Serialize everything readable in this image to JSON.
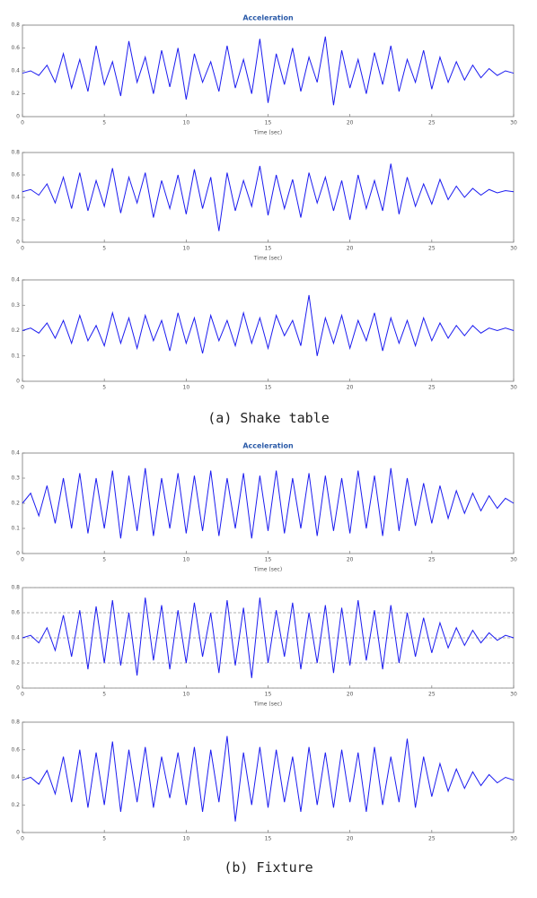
{
  "chart_data": [
    {
      "type": "line",
      "title": "Acceleration",
      "x_label": "Time (sec)",
      "x": [
        0,
        0.5,
        1,
        1.5,
        2,
        2.5,
        3,
        3.5,
        4,
        4.5,
        5,
        5.5,
        6,
        6.5,
        7,
        7.5,
        8,
        8.5,
        9,
        9.5,
        10,
        10.5,
        11,
        11.5,
        12,
        12.5,
        13,
        13.5,
        14,
        14.5,
        15,
        15.5,
        16,
        16.5,
        17,
        17.5,
        18,
        18.5,
        19,
        19.5,
        20,
        20.5,
        21,
        21.5,
        22,
        22.5,
        23,
        23.5,
        24,
        24.5,
        25,
        25.5,
        26,
        26.5,
        27,
        27.5,
        28,
        28.5,
        29,
        29.5,
        30
      ],
      "values": [
        0.38,
        0.4,
        0.36,
        0.45,
        0.3,
        0.55,
        0.25,
        0.5,
        0.22,
        0.62,
        0.28,
        0.48,
        0.18,
        0.66,
        0.3,
        0.52,
        0.2,
        0.58,
        0.26,
        0.6,
        0.15,
        0.55,
        0.3,
        0.48,
        0.22,
        0.62,
        0.25,
        0.5,
        0.2,
        0.68,
        0.12,
        0.55,
        0.28,
        0.6,
        0.22,
        0.52,
        0.3,
        0.7,
        0.1,
        0.58,
        0.25,
        0.5,
        0.2,
        0.56,
        0.28,
        0.62,
        0.22,
        0.5,
        0.3,
        0.58,
        0.24,
        0.52,
        0.3,
        0.48,
        0.32,
        0.45,
        0.34,
        0.42,
        0.36,
        0.4,
        0.38
      ],
      "color": "#1c1cf0",
      "xlim": [
        0,
        30
      ],
      "xticks": [
        0,
        5,
        10,
        15,
        20,
        25,
        30
      ],
      "ylim": [
        0,
        0.8
      ],
      "yticks": [
        0,
        0.2,
        0.4,
        0.6,
        0.8
      ],
      "grid": false
    },
    {
      "type": "line",
      "x_label": "Time (sec)",
      "x": [
        0,
        0.5,
        1,
        1.5,
        2,
        2.5,
        3,
        3.5,
        4,
        4.5,
        5,
        5.5,
        6,
        6.5,
        7,
        7.5,
        8,
        8.5,
        9,
        9.5,
        10,
        10.5,
        11,
        11.5,
        12,
        12.5,
        13,
        13.5,
        14,
        14.5,
        15,
        15.5,
        16,
        16.5,
        17,
        17.5,
        18,
        18.5,
        19,
        19.5,
        20,
        20.5,
        21,
        21.5,
        22,
        22.5,
        23,
        23.5,
        24,
        24.5,
        25,
        25.5,
        26,
        26.5,
        27,
        27.5,
        28,
        28.5,
        29,
        29.5,
        30
      ],
      "values": [
        0.45,
        0.47,
        0.42,
        0.52,
        0.35,
        0.58,
        0.3,
        0.62,
        0.28,
        0.55,
        0.32,
        0.66,
        0.26,
        0.58,
        0.35,
        0.62,
        0.22,
        0.55,
        0.3,
        0.6,
        0.25,
        0.65,
        0.3,
        0.58,
        0.1,
        0.62,
        0.28,
        0.55,
        0.32,
        0.68,
        0.24,
        0.6,
        0.3,
        0.56,
        0.22,
        0.62,
        0.35,
        0.58,
        0.28,
        0.55,
        0.2,
        0.6,
        0.3,
        0.55,
        0.28,
        0.7,
        0.25,
        0.58,
        0.32,
        0.52,
        0.34,
        0.56,
        0.38,
        0.5,
        0.4,
        0.48,
        0.42,
        0.47,
        0.44,
        0.46,
        0.45
      ],
      "color": "#1c1cf0",
      "xlim": [
        0,
        30
      ],
      "xticks": [
        0,
        5,
        10,
        15,
        20,
        25,
        30
      ],
      "ylim": [
        0,
        0.8
      ],
      "yticks": [
        0,
        0.2,
        0.4,
        0.6,
        0.8
      ],
      "grid": false
    },
    {
      "type": "line",
      "x": [
        0,
        0.5,
        1,
        1.5,
        2,
        2.5,
        3,
        3.5,
        4,
        4.5,
        5,
        5.5,
        6,
        6.5,
        7,
        7.5,
        8,
        8.5,
        9,
        9.5,
        10,
        10.5,
        11,
        11.5,
        12,
        12.5,
        13,
        13.5,
        14,
        14.5,
        15,
        15.5,
        16,
        16.5,
        17,
        17.5,
        18,
        18.5,
        19,
        19.5,
        20,
        20.5,
        21,
        21.5,
        22,
        22.5,
        23,
        23.5,
        24,
        24.5,
        25,
        25.5,
        26,
        26.5,
        27,
        27.5,
        28,
        28.5,
        29,
        29.5,
        30
      ],
      "values": [
        0.2,
        0.21,
        0.19,
        0.23,
        0.17,
        0.24,
        0.15,
        0.26,
        0.16,
        0.22,
        0.14,
        0.27,
        0.15,
        0.25,
        0.13,
        0.26,
        0.16,
        0.24,
        0.12,
        0.27,
        0.15,
        0.25,
        0.11,
        0.26,
        0.16,
        0.24,
        0.14,
        0.27,
        0.15,
        0.25,
        0.13,
        0.26,
        0.18,
        0.24,
        0.14,
        0.34,
        0.1,
        0.25,
        0.15,
        0.26,
        0.13,
        0.24,
        0.16,
        0.27,
        0.12,
        0.25,
        0.15,
        0.24,
        0.14,
        0.25,
        0.16,
        0.23,
        0.17,
        0.22,
        0.18,
        0.22,
        0.19,
        0.21,
        0.2,
        0.21,
        0.2
      ],
      "color": "#1c1cf0",
      "xlim": [
        0,
        30
      ],
      "xticks": [
        0,
        5,
        10,
        15,
        20,
        25,
        30
      ],
      "ylim": [
        0,
        0.4
      ],
      "yticks": [
        0,
        0.1,
        0.2,
        0.3,
        0.4
      ],
      "grid": false
    },
    {
      "type": "line",
      "title": "Acceleration",
      "x_label": "Time (sec)",
      "x": [
        0,
        0.5,
        1,
        1.5,
        2,
        2.5,
        3,
        3.5,
        4,
        4.5,
        5,
        5.5,
        6,
        6.5,
        7,
        7.5,
        8,
        8.5,
        9,
        9.5,
        10,
        10.5,
        11,
        11.5,
        12,
        12.5,
        13,
        13.5,
        14,
        14.5,
        15,
        15.5,
        16,
        16.5,
        17,
        17.5,
        18,
        18.5,
        19,
        19.5,
        20,
        20.5,
        21,
        21.5,
        22,
        22.5,
        23,
        23.5,
        24,
        24.5,
        25,
        25.5,
        26,
        26.5,
        27,
        27.5,
        28,
        28.5,
        29,
        29.5,
        30
      ],
      "values": [
        0.2,
        0.24,
        0.15,
        0.27,
        0.12,
        0.3,
        0.1,
        0.32,
        0.08,
        0.3,
        0.1,
        0.33,
        0.06,
        0.31,
        0.09,
        0.34,
        0.07,
        0.3,
        0.1,
        0.32,
        0.08,
        0.31,
        0.09,
        0.33,
        0.07,
        0.3,
        0.1,
        0.32,
        0.06,
        0.31,
        0.09,
        0.33,
        0.08,
        0.3,
        0.1,
        0.32,
        0.07,
        0.31,
        0.09,
        0.3,
        0.08,
        0.33,
        0.1,
        0.31,
        0.07,
        0.34,
        0.09,
        0.3,
        0.11,
        0.28,
        0.12,
        0.27,
        0.14,
        0.25,
        0.16,
        0.24,
        0.17,
        0.23,
        0.18,
        0.22,
        0.2
      ],
      "color": "#1c1cf0",
      "xlim": [
        0,
        30
      ],
      "xticks": [
        0,
        5,
        10,
        15,
        20,
        25,
        30
      ],
      "ylim": [
        0,
        0.4
      ],
      "yticks": [
        0,
        0.1,
        0.2,
        0.3,
        0.4
      ],
      "grid": false
    },
    {
      "type": "line",
      "x_label": "Time (sec)",
      "x": [
        0,
        0.5,
        1,
        1.5,
        2,
        2.5,
        3,
        3.5,
        4,
        4.5,
        5,
        5.5,
        6,
        6.5,
        7,
        7.5,
        8,
        8.5,
        9,
        9.5,
        10,
        10.5,
        11,
        11.5,
        12,
        12.5,
        13,
        13.5,
        14,
        14.5,
        15,
        15.5,
        16,
        16.5,
        17,
        17.5,
        18,
        18.5,
        19,
        19.5,
        20,
        20.5,
        21,
        21.5,
        22,
        22.5,
        23,
        23.5,
        24,
        24.5,
        25,
        25.5,
        26,
        26.5,
        27,
        27.5,
        28,
        28.5,
        29,
        29.5,
        30
      ],
      "values": [
        0.4,
        0.42,
        0.36,
        0.48,
        0.3,
        0.58,
        0.25,
        0.62,
        0.15,
        0.65,
        0.2,
        0.7,
        0.18,
        0.6,
        0.1,
        0.72,
        0.22,
        0.66,
        0.15,
        0.62,
        0.2,
        0.68,
        0.25,
        0.6,
        0.12,
        0.7,
        0.18,
        0.64,
        0.08,
        0.72,
        0.2,
        0.62,
        0.25,
        0.68,
        0.15,
        0.6,
        0.2,
        0.66,
        0.12,
        0.64,
        0.18,
        0.7,
        0.22,
        0.62,
        0.15,
        0.66,
        0.2,
        0.6,
        0.25,
        0.56,
        0.28,
        0.52,
        0.32,
        0.48,
        0.34,
        0.46,
        0.36,
        0.44,
        0.38,
        0.42,
        0.4
      ],
      "color": "#1c1cf0",
      "xlim": [
        0,
        30
      ],
      "xticks": [
        0,
        5,
        10,
        15,
        20,
        25,
        30
      ],
      "ylim": [
        0,
        0.8
      ],
      "yticks": [
        0,
        0.2,
        0.4,
        0.6,
        0.8
      ],
      "grid": true
    },
    {
      "type": "line",
      "x": [
        0,
        0.5,
        1,
        1.5,
        2,
        2.5,
        3,
        3.5,
        4,
        4.5,
        5,
        5.5,
        6,
        6.5,
        7,
        7.5,
        8,
        8.5,
        9,
        9.5,
        10,
        10.5,
        11,
        11.5,
        12,
        12.5,
        13,
        13.5,
        14,
        14.5,
        15,
        15.5,
        16,
        16.5,
        17,
        17.5,
        18,
        18.5,
        19,
        19.5,
        20,
        20.5,
        21,
        21.5,
        22,
        22.5,
        23,
        23.5,
        24,
        24.5,
        25,
        25.5,
        26,
        26.5,
        27,
        27.5,
        28,
        28.5,
        29,
        29.5,
        30
      ],
      "values": [
        0.38,
        0.4,
        0.35,
        0.45,
        0.28,
        0.55,
        0.22,
        0.6,
        0.18,
        0.58,
        0.2,
        0.66,
        0.15,
        0.6,
        0.22,
        0.62,
        0.18,
        0.55,
        0.25,
        0.58,
        0.2,
        0.62,
        0.15,
        0.6,
        0.22,
        0.7,
        0.08,
        0.58,
        0.2,
        0.62,
        0.18,
        0.6,
        0.22,
        0.55,
        0.15,
        0.62,
        0.2,
        0.58,
        0.18,
        0.6,
        0.22,
        0.58,
        0.15,
        0.62,
        0.2,
        0.55,
        0.22,
        0.68,
        0.18,
        0.55,
        0.26,
        0.5,
        0.3,
        0.46,
        0.32,
        0.44,
        0.34,
        0.42,
        0.36,
        0.4,
        0.38
      ],
      "color": "#1c1cf0",
      "xlim": [
        0,
        30
      ],
      "xticks": [
        0,
        5,
        10,
        15,
        20,
        25,
        30
      ],
      "ylim": [
        0,
        0.8
      ],
      "yticks": [
        0,
        0.2,
        0.4,
        0.6,
        0.8
      ],
      "grid": false
    }
  ],
  "captions": [
    "(a) Shake table",
    "(b) Fixture"
  ]
}
